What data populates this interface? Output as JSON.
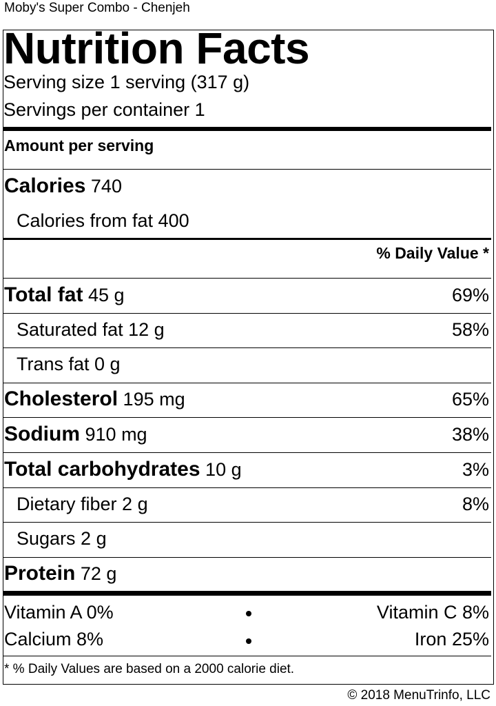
{
  "item_title": "Moby's Super Combo - Chenjeh",
  "title": "Nutrition Facts",
  "serving_size": "Serving size 1 serving (317 g)",
  "servings_per_container": "Servings per container 1",
  "amount_per_serving": "Amount per serving",
  "calories": {
    "label": "Calories",
    "value": "740"
  },
  "calories_from_fat": "Calories from fat 400",
  "daily_value_header": "% Daily Value *",
  "nutrients": {
    "total_fat": {
      "label": "Total fat",
      "amount": "45 g",
      "dv": "69%"
    },
    "saturated_fat": {
      "label": "Saturated fat 12 g",
      "dv": "58%"
    },
    "trans_fat": {
      "label": "Trans fat 0 g"
    },
    "cholesterol": {
      "label": "Cholesterol",
      "amount": "195 mg",
      "dv": "65%"
    },
    "sodium": {
      "label": "Sodium",
      "amount": "910 mg",
      "dv": "38%"
    },
    "total_carbohydrates": {
      "label": "Total carbohydrates",
      "amount": "10 g",
      "dv": "3%"
    },
    "dietary_fiber": {
      "label": "Dietary fiber 2 g",
      "dv": "8%"
    },
    "sugars": {
      "label": "Sugars 2 g"
    },
    "protein": {
      "label": "Protein",
      "amount": "72 g"
    }
  },
  "vitamins": {
    "vitamin_a": "Vitamin A 0%",
    "vitamin_c": "Vitamin C 8%",
    "calcium": "Calcium 8%",
    "iron": "Iron 25%"
  },
  "footnote": "* % Daily Values are based on a 2000 calorie diet.",
  "copyright": "© 2018 MenuTrinfo, LLC"
}
